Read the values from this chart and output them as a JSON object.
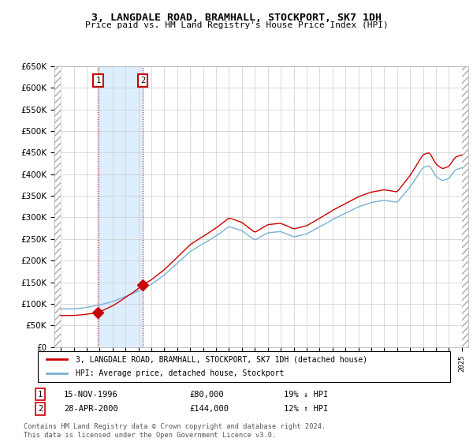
{
  "title": "3, LANGDALE ROAD, BRAMHALL, STOCKPORT, SK7 1DH",
  "subtitle": "Price paid vs. HM Land Registry's House Price Index (HPI)",
  "legend_line1": "3, LANGDALE ROAD, BRAMHALL, STOCKPORT, SK7 1DH (detached house)",
  "legend_line2": "HPI: Average price, detached house, Stockport",
  "footer": "Contains HM Land Registry data © Crown copyright and database right 2024.\nThis data is licensed under the Open Government Licence v3.0.",
  "transaction1_label": "1",
  "transaction1_date": "15-NOV-1996",
  "transaction1_price": "£80,000",
  "transaction1_hpi": "19% ↓ HPI",
  "transaction1_year": 1996.88,
  "transaction1_value": 80000,
  "transaction2_label": "2",
  "transaction2_date": "28-APR-2000",
  "transaction2_price": "£144,000",
  "transaction2_hpi": "12% ↑ HPI",
  "transaction2_year": 2000.32,
  "transaction2_value": 144000,
  "ylim": [
    0,
    650000
  ],
  "yticks": [
    0,
    50000,
    100000,
    150000,
    200000,
    250000,
    300000,
    350000,
    400000,
    450000,
    500000,
    550000,
    600000,
    650000
  ],
  "xlim_start": 1993.5,
  "xlim_end": 2025.5,
  "hpi_color": "#7ab0d4",
  "price_color": "#cc0000",
  "shade_color": "#ddeeff"
}
